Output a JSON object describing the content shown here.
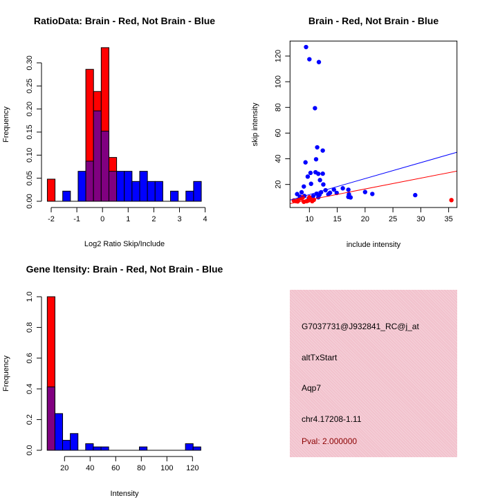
{
  "colors": {
    "red": "#ff0000",
    "blue": "#0000ff",
    "overlap": "#800080",
    "pval": "#8b0000",
    "panel": "#f2c2cd"
  },
  "chart_data": [
    {
      "type": "bar",
      "title": "RatioData: Brain - Red, Not Brain - Blue",
      "xlabel": "Log2 Ratio Skip/Include",
      "ylabel": "Frequency",
      "bin_start": -2.15,
      "bin_width": 0.3,
      "series": [
        {
          "name": "Brain",
          "color": "red",
          "values": [
            0.048,
            0,
            0,
            0,
            0,
            0.286,
            0.238,
            0.333,
            0.095,
            0,
            0,
            0,
            0,
            0,
            0,
            0,
            0,
            0,
            0,
            0
          ]
        },
        {
          "name": "Not Brain",
          "color": "blue",
          "values": [
            0,
            0,
            0.022,
            0,
            0.065,
            0.087,
            0.196,
            0.152,
            0.065,
            0.065,
            0.065,
            0.043,
            0.065,
            0.043,
            0.043,
            0,
            0.022,
            0,
            0.022,
            0.043
          ]
        }
      ],
      "xlim": [
        -2.15,
        3.85
      ],
      "ylim": [
        0,
        0.333
      ],
      "xticks": [
        "-2",
        "-1",
        "0",
        "1",
        "2",
        "3",
        "4"
      ],
      "yticks": [
        "0.00",
        "0.05",
        "0.10",
        "0.15",
        "0.20",
        "0.25",
        "0.30"
      ]
    },
    {
      "type": "scatter",
      "title": "Brain - Red, Not Brain - Blue",
      "xlabel": "include intensity",
      "ylabel": "skip intensity",
      "xlim": [
        6.52,
        36.5
      ],
      "ylim": [
        2.05,
        131.7
      ],
      "xticks": [
        "10",
        "15",
        "20",
        "25",
        "30",
        "35"
      ],
      "yticks": [
        "20",
        "40",
        "60",
        "80",
        "100",
        "120"
      ],
      "series": [
        {
          "name": "Not Brain",
          "color": "blue",
          "points": [
            [
              9.4,
              127
            ],
            [
              10,
              117.5
            ],
            [
              11.7,
              115.3
            ],
            [
              11,
              79.4
            ],
            [
              11.4,
              48.9
            ],
            [
              12.4,
              46.4
            ],
            [
              9.3,
              37.2
            ],
            [
              11.2,
              39.6
            ],
            [
              10.2,
              29
            ],
            [
              9.7,
              26.1
            ],
            [
              11.1,
              29.5
            ],
            [
              11.6,
              28.3
            ],
            [
              12.4,
              28.4
            ],
            [
              11.9,
              23.4
            ],
            [
              9,
              18.4
            ],
            [
              10.3,
              20.5
            ],
            [
              12.5,
              20
            ],
            [
              12.9,
              15.5
            ],
            [
              14.4,
              16
            ],
            [
              16,
              17
            ],
            [
              17,
              15.9
            ],
            [
              7.8,
              12.5
            ],
            [
              8.6,
              13.9
            ],
            [
              12.1,
              13.9
            ],
            [
              13.7,
              13.5
            ],
            [
              14.9,
              13.4
            ],
            [
              13.4,
              12.3
            ],
            [
              20,
              14.1
            ],
            [
              21.3,
              12.6
            ],
            [
              29,
              11.7
            ],
            [
              17,
              10.3
            ],
            [
              17.4,
              9.9
            ],
            [
              11.3,
              12.8
            ],
            [
              11.6,
              10
            ],
            [
              10.7,
              11
            ],
            [
              9.1,
              11
            ],
            [
              9.9,
              9.2
            ],
            [
              11.8,
              11.9
            ],
            [
              17.1,
              12.3
            ],
            [
              8.3,
              10.5
            ]
          ],
          "fit": {
            "slope": 1.244,
            "intercept": -0.31
          }
        },
        {
          "name": "Brain",
          "color": "red",
          "points": [
            [
              7.2,
              7.5
            ],
            [
              7.6,
              7
            ],
            [
              8,
              8
            ],
            [
              8.5,
              9
            ],
            [
              8.8,
              10
            ],
            [
              9.5,
              7
            ],
            [
              9.8,
              7.5
            ],
            [
              10.2,
              8.5
            ],
            [
              10.5,
              7
            ],
            [
              10.8,
              8
            ],
            [
              10,
              10
            ],
            [
              9,
              6.5
            ],
            [
              7.9,
              6.8
            ],
            [
              35.5,
              7.8
            ]
          ],
          "fit": {
            "slope": 0.844,
            "intercept": -0.4
          }
        }
      ]
    },
    {
      "type": "bar",
      "title": "Gene Itensity: Brain - Red, Not Brain - Blue",
      "xlabel": "Intensity",
      "ylabel": "Frequency",
      "bin_start": 6.5,
      "bin_width": 6,
      "series": [
        {
          "name": "Brain",
          "color": "red",
          "values": [
            1.0,
            0,
            0,
            0,
            0,
            0,
            0,
            0,
            0,
            0,
            0,
            0,
            0,
            0,
            0,
            0,
            0,
            0,
            0,
            0
          ]
        },
        {
          "name": "Not Brain",
          "color": "blue",
          "values": [
            0.413,
            0.239,
            0.065,
            0.109,
            0,
            0.043,
            0.022,
            0.022,
            0,
            0,
            0,
            0,
            0.022,
            0,
            0,
            0,
            0,
            0,
            0.043,
            0.022
          ]
        }
      ],
      "xlim": [
        6.5,
        126.5
      ],
      "ylim": [
        0,
        1.0
      ],
      "xticks": [
        "20",
        "40",
        "60",
        "80",
        "100",
        "120"
      ],
      "yticks": [
        "0.0",
        "0.2",
        "0.4",
        "0.6",
        "0.8",
        "1.0"
      ]
    }
  ],
  "info": {
    "probe": "G7037731@J932841_RC@j_at",
    "event": "altTxStart",
    "gene": "Aqp7",
    "location": "chr4.17208-1.11",
    "pval": "Pval: 2.000000"
  }
}
